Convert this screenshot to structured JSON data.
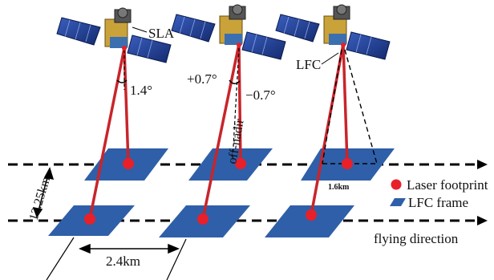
{
  "labels": {
    "sla": "SLA",
    "angle_sla": "1.4°",
    "angle_plus": "+0.7°",
    "angle_minus": "−0.7°",
    "off_nadir": "off-nadir",
    "lfc": "LFC",
    "dist_along": "12.25km",
    "dist_cross": "2.4km",
    "dist_frame": "1.6km",
    "flying_direction": "flying direction"
  },
  "legend": {
    "laser_footprint": "Laser footprint",
    "lfc_frame": "LFC frame"
  },
  "colors": {
    "frame": "#2f5fa8",
    "footprint": "#e8202a",
    "beam": "#c8252b",
    "panel": "#1e3c8f",
    "body_gold": "#c9a23a"
  }
}
